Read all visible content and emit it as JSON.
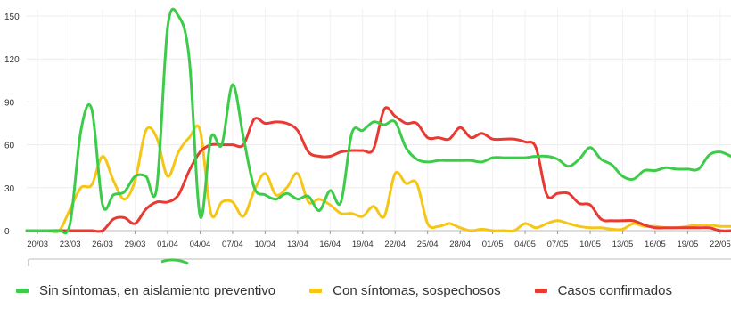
{
  "chart_data": {
    "type": "line",
    "y_ticks": [
      0,
      30,
      60,
      90,
      120,
      150
    ],
    "ylim": [
      0,
      155
    ],
    "x_tick_labels": [
      "20/03",
      "23/03",
      "26/03",
      "29/03",
      "01/04",
      "04/04",
      "07/04",
      "10/04",
      "13/04",
      "16/04",
      "19/04",
      "22/04",
      "25/04",
      "28/04",
      "01/05",
      "04/05",
      "07/05",
      "10/05",
      "13/05",
      "16/05",
      "19/05",
      "22/05"
    ],
    "x": [
      "19/03",
      "20/03",
      "21/03",
      "22/03",
      "23/03",
      "24/03",
      "25/03",
      "26/03",
      "27/03",
      "28/03",
      "29/03",
      "30/03",
      "31/03",
      "01/04",
      "02/04",
      "03/04",
      "04/04",
      "05/04",
      "06/04",
      "07/04",
      "08/04",
      "09/04",
      "10/04",
      "11/04",
      "12/04",
      "13/04",
      "14/04",
      "15/04",
      "16/04",
      "17/04",
      "18/04",
      "19/04",
      "20/04",
      "21/04",
      "22/04",
      "23/04",
      "24/04",
      "25/04",
      "26/04",
      "27/04",
      "28/04",
      "29/04",
      "30/04",
      "01/05",
      "02/05",
      "03/05",
      "04/05",
      "05/05",
      "06/05",
      "07/05",
      "08/05",
      "09/05",
      "10/05",
      "11/05",
      "12/05",
      "13/05",
      "14/05",
      "15/05",
      "16/05",
      "17/05",
      "18/05",
      "19/05",
      "20/05",
      "21/05",
      "22/05",
      "23/05"
    ],
    "series": [
      {
        "name": "Sin síntomas, en aislamiento preventivo",
        "color": "#3dcc4a",
        "values": [
          0,
          0,
          0,
          0,
          5,
          70,
          85,
          18,
          25,
          27,
          38,
          38,
          30,
          142,
          150,
          120,
          10,
          65,
          60,
          102,
          65,
          30,
          25,
          22,
          26,
          22,
          24,
          14,
          28,
          20,
          68,
          70,
          76,
          74,
          76,
          58,
          50,
          48,
          49,
          49,
          49,
          49,
          48,
          51,
          51,
          51,
          51,
          52,
          52,
          50,
          45,
          50,
          58,
          50,
          46,
          38,
          36,
          42,
          42,
          44,
          43,
          43,
          43,
          53,
          55,
          52
        ]
      },
      {
        "name": "Con síntomas, sospechosos",
        "color": "#f5c518",
        "values": [
          0,
          0,
          0,
          0,
          15,
          30,
          32,
          52,
          35,
          22,
          35,
          70,
          65,
          38,
          55,
          65,
          70,
          12,
          20,
          20,
          10,
          28,
          40,
          25,
          30,
          40,
          20,
          22,
          18,
          12,
          12,
          10,
          17,
          10,
          40,
          33,
          33,
          5,
          3,
          5,
          2,
          0,
          1,
          0,
          0,
          0,
          5,
          2,
          5,
          7,
          5,
          3,
          2,
          2,
          1,
          1,
          5,
          3,
          3,
          2,
          2,
          3,
          4,
          4,
          3,
          3
        ]
      },
      {
        "name": "Casos confirmados",
        "color": "#e83a32",
        "values": [
          0,
          0,
          0,
          0,
          0,
          0,
          0,
          0,
          8,
          9,
          5,
          15,
          20,
          20,
          25,
          42,
          55,
          60,
          60,
          60,
          60,
          78,
          75,
          76,
          75,
          70,
          55,
          52,
          52,
          55,
          56,
          56,
          57,
          85,
          80,
          75,
          75,
          65,
          65,
          64,
          72,
          65,
          68,
          64,
          64,
          64,
          62,
          58,
          25,
          26,
          26,
          19,
          18,
          8,
          7,
          7,
          7,
          4,
          2,
          2,
          2,
          2,
          2,
          2,
          0,
          0
        ]
      }
    ]
  }
}
